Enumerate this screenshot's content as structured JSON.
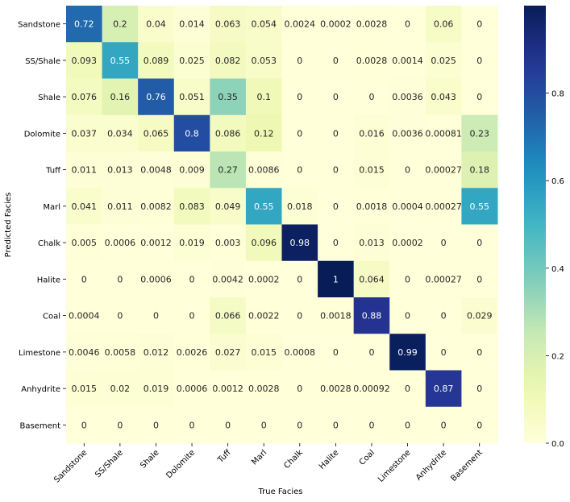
{
  "chart_data": {
    "type": "heatmap",
    "title": "",
    "xlabel": "True Facies",
    "ylabel": "Predicted Facies",
    "x_categories": [
      "Sandstone",
      "SS/Shale",
      "Shale",
      "Dolomite",
      "Tuff",
      "Marl",
      "Chalk",
      "Halite",
      "Coal",
      "Limestone",
      "Anhydrite",
      "Basement"
    ],
    "y_categories": [
      "Sandstone",
      "SS/Shale",
      "Shale",
      "Dolomite",
      "Tuff",
      "Marl",
      "Chalk",
      "Halite",
      "Coal",
      "Limestone",
      "Anhydrite",
      "Basement"
    ],
    "values": [
      [
        0.72,
        0.2,
        0.04,
        0.014,
        0.063,
        0.054,
        0.0024,
        0.0002,
        0.0028,
        0,
        0.06,
        0
      ],
      [
        0.093,
        0.55,
        0.089,
        0.025,
        0.082,
        0.053,
        0,
        0,
        0.0028,
        0.0014,
        0.025,
        0
      ],
      [
        0.076,
        0.16,
        0.76,
        0.051,
        0.35,
        0.1,
        0,
        0,
        0,
        0.0036,
        0.043,
        0
      ],
      [
        0.037,
        0.034,
        0.065,
        0.8,
        0.086,
        0.12,
        0,
        0,
        0.016,
        0.0036,
        0.00081,
        0.23
      ],
      [
        0.011,
        0.013,
        0.0048,
        0.009,
        0.27,
        0.0086,
        0,
        0,
        0.015,
        0,
        0.00027,
        0.18
      ],
      [
        0.041,
        0.011,
        0.0082,
        0.083,
        0.049,
        0.55,
        0.018,
        0,
        0.0018,
        0.0004,
        0.00027,
        0.55
      ],
      [
        0.005,
        0.0006,
        0.0012,
        0.019,
        0.003,
        0.096,
        0.98,
        0,
        0.013,
        0.0002,
        0,
        0
      ],
      [
        0,
        0,
        0.0006,
        0,
        0.0042,
        0.0002,
        0,
        1,
        0.064,
        0,
        0.00027,
        0
      ],
      [
        0.0004,
        0,
        0,
        0,
        0.066,
        0.0022,
        0,
        0.0018,
        0.88,
        0,
        0,
        0.029
      ],
      [
        0.0046,
        0.0058,
        0.012,
        0.0026,
        0.027,
        0.015,
        0.0008,
        0,
        0,
        0.99,
        0,
        0
      ],
      [
        0.015,
        0.02,
        0.019,
        0.0006,
        0.0012,
        0.0028,
        0,
        0.0028,
        0.00092,
        0,
        0.87,
        0
      ],
      [
        0,
        0,
        0,
        0,
        0,
        0,
        0,
        0,
        0,
        0,
        0,
        0
      ]
    ],
    "colormap": "YlGnBu",
    "colorbar": {
      "range": [
        0,
        1
      ],
      "ticks": [
        0.0,
        0.2,
        0.4,
        0.6,
        0.8
      ],
      "tick_labels": [
        "0.0",
        "0.2",
        "0.4",
        "0.6",
        "0.8"
      ]
    },
    "annotations": true,
    "grid": false
  }
}
